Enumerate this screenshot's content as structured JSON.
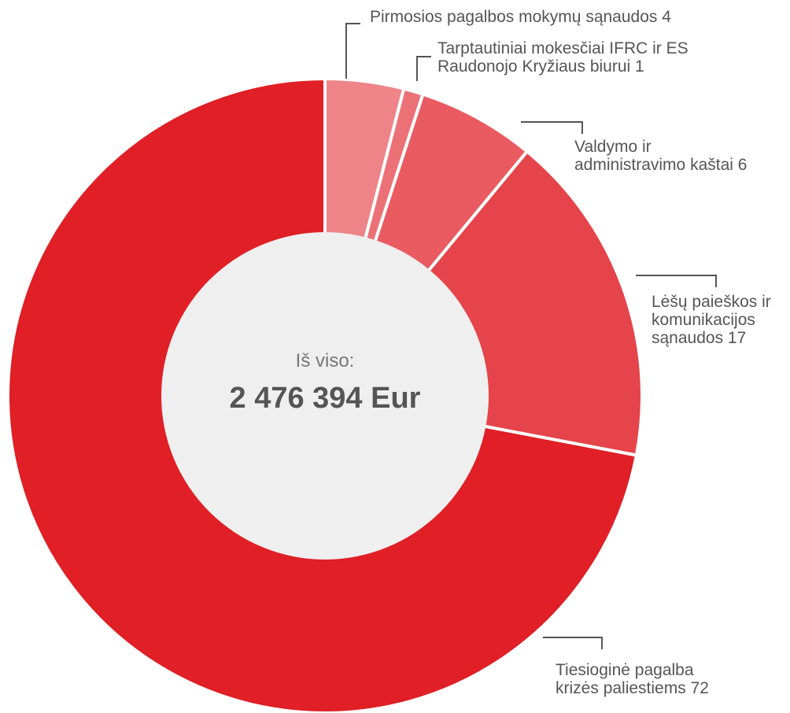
{
  "chart_data": {
    "type": "donut",
    "categories": [
      "Pirmosios pagalbos mokymų sąnaudos",
      "Tarptautiniai mokesčiai IFRC ir ES Raudonojo Kryžiaus biurui",
      "Valdymo ir administravimo kaštai",
      "Lėšų paieškos ir komunikacijos sąnaudos",
      "Tiesioginė pagalba krizės paliestiems"
    ],
    "values": [
      4,
      1,
      6,
      17,
      72
    ],
    "colors": [
      "#ee8488",
      "#ec7177",
      "#e95b61",
      "#e5444a",
      "#e01f26"
    ],
    "center_label": "Iš viso:",
    "center_value": "2 476 394 Eur"
  }
}
